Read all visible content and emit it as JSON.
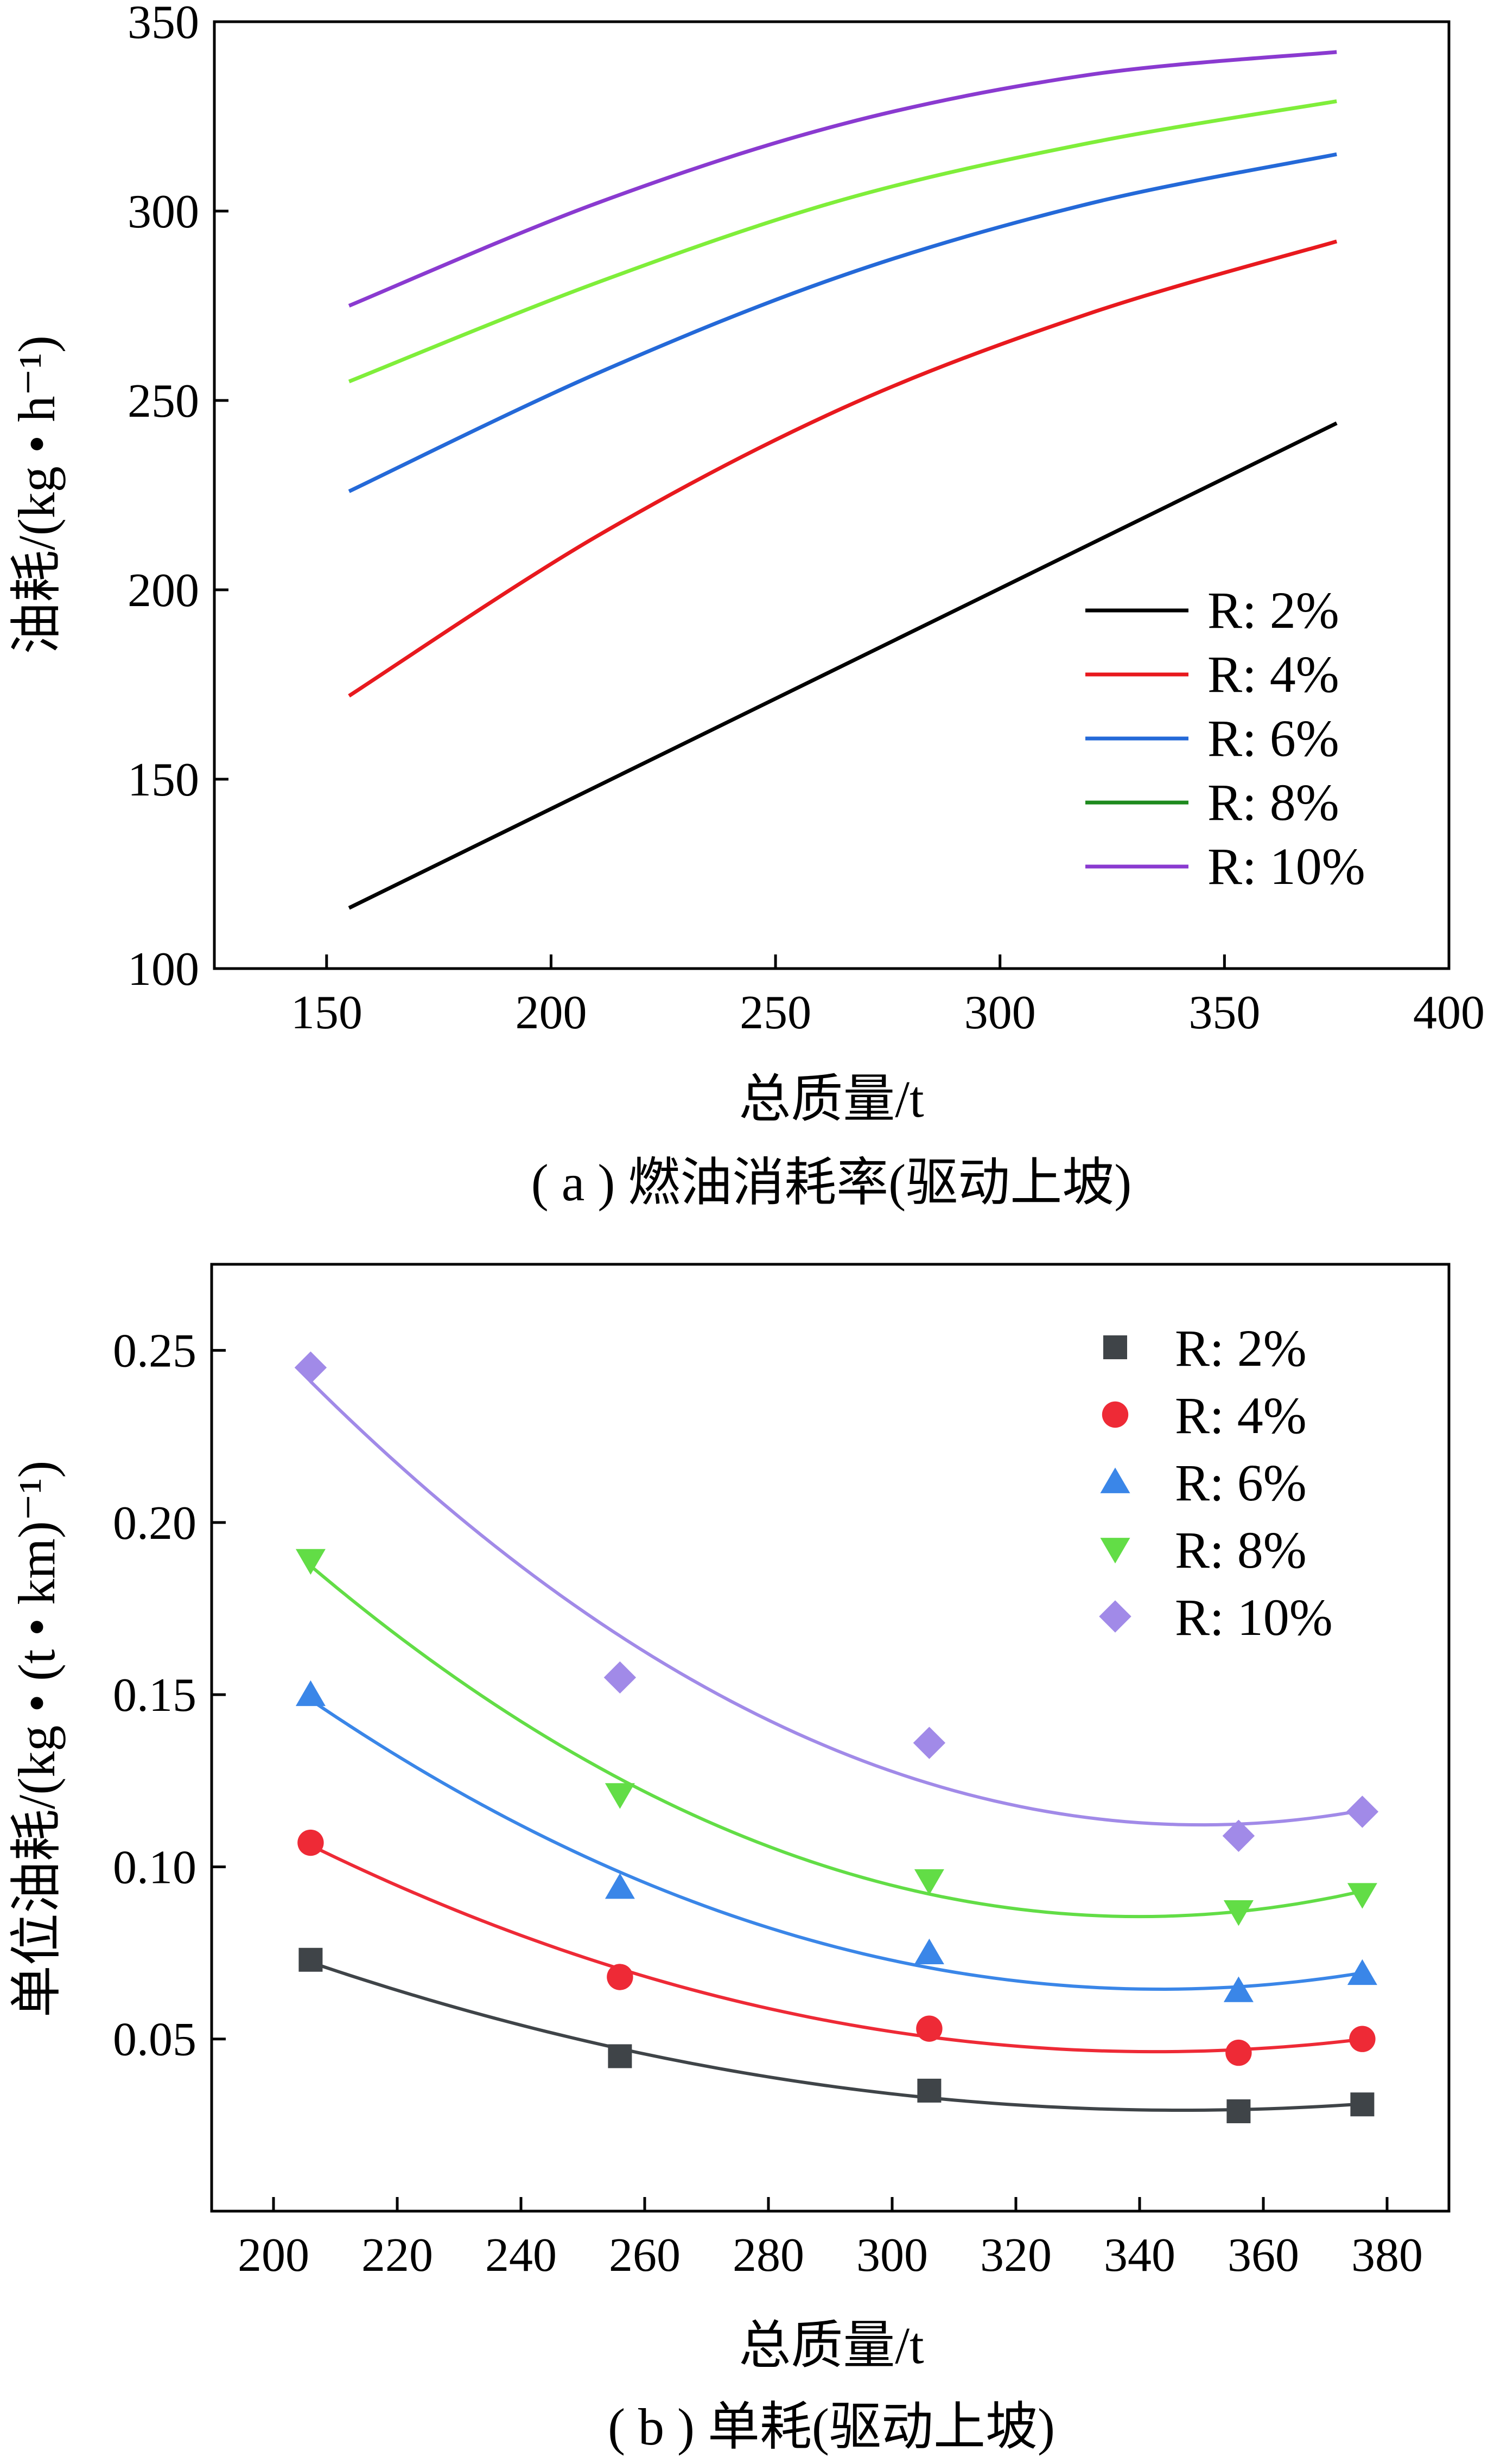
{
  "chart_data": [
    {
      "type": "line",
      "caption": "( a ) 燃油消耗率(驱动上坡)",
      "xlabel": "总质量/t",
      "ylabel": "油耗/(kg • h⁻¹)",
      "xlim": [
        125,
        400
      ],
      "ylim": [
        100,
        350
      ],
      "xticks": [
        150,
        200,
        250,
        300,
        350,
        400
      ],
      "yticks": [
        100,
        150,
        200,
        250,
        300,
        350
      ],
      "legend_position": "inside, lower-right",
      "grid": false,
      "x": [
        155,
        210,
        265,
        320,
        375
      ],
      "series": [
        {
          "name": "R: 2%",
          "color": "#000000",
          "values": [
            116,
            148,
            180,
            212,
            244
          ]
        },
        {
          "name": "R: 4%",
          "color": "#e8191e",
          "values": [
            172,
            214,
            248,
            273,
            292
          ]
        },
        {
          "name": "R: 6%",
          "color": "#2469d8",
          "values": [
            226,
            257,
            283,
            302,
            315
          ]
        },
        {
          "name": "R: 8%",
          "color": "#7fee3a",
          "values": [
            255,
            281,
            303,
            318,
            329
          ]
        },
        {
          "name": "R: 10%",
          "color": "#8a3ad0",
          "values": [
            275,
            302,
            323,
            336,
            342
          ]
        }
      ],
      "legend_line_colors": [
        "#000000",
        "#e8191e",
        "#2469d8",
        "#1e8a1e",
        "#8a3ad0"
      ]
    },
    {
      "type": "scatter",
      "caption": "( b ) 单耗(驱动上坡)",
      "xlabel": "总质量/t",
      "ylabel": "单位油耗/(kg • (t • km)⁻¹)",
      "xlim": [
        190,
        390
      ],
      "ylim": [
        0.0,
        0.275
      ],
      "xticks": [
        200,
        220,
        240,
        260,
        280,
        300,
        320,
        340,
        360,
        380
      ],
      "yticks": [
        0.05,
        0.1,
        0.15,
        0.2,
        0.25
      ],
      "legend_position": "inside, top-right",
      "grid": false,
      "fit": "quadratic",
      "x": [
        206,
        256,
        306,
        356,
        376
      ],
      "series": [
        {
          "name": "R: 2%",
          "marker": "square",
          "color": "#3f4448",
          "values": [
            0.073,
            0.045,
            0.035,
            0.029,
            0.031
          ]
        },
        {
          "name": "R: 4%",
          "marker": "circle",
          "color": "#ee2a36",
          "values": [
            0.107,
            0.068,
            0.053,
            0.046,
            0.05
          ]
        },
        {
          "name": "R: 6%",
          "marker": "triangle-up",
          "color": "#3a86e8",
          "values": [
            0.15,
            0.094,
            0.075,
            0.064,
            0.069
          ]
        },
        {
          "name": "R: 8%",
          "marker": "triangle-down",
          "color": "#62dd46",
          "values": [
            0.189,
            0.121,
            0.096,
            0.087,
            0.092
          ]
        },
        {
          "name": "R: 10%",
          "marker": "diamond",
          "color": "#a18ae8",
          "values": [
            0.245,
            0.155,
            0.136,
            0.109,
            0.116
          ]
        }
      ]
    }
  ]
}
